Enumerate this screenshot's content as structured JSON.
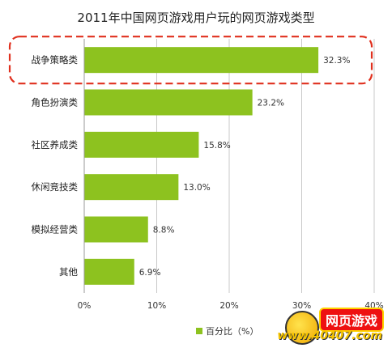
{
  "chart_data": {
    "type": "bar",
    "orientation": "horizontal",
    "title": "2011年中国网页游戏用户玩的网页游戏类型",
    "categories": [
      "战争策略类",
      "角色扮演类",
      "社区养成类",
      "休闲竞技类",
      "模拟经营类",
      "其他"
    ],
    "series": [
      {
        "name": "百分比（%）",
        "values": [
          32.3,
          23.2,
          15.8,
          13.0,
          8.8,
          6.9
        ],
        "value_labels": [
          "32.3%",
          "23.2%",
          "15.8%",
          "13.0%",
          "8.8%",
          "6.9%"
        ],
        "color": "#8dc21f"
      }
    ],
    "xlim": [
      0,
      40
    ],
    "xticks": [
      0,
      10,
      20,
      30,
      40
    ],
    "xtick_labels": [
      "0%",
      "10%",
      "20%",
      "30%",
      "40%"
    ],
    "grid": true,
    "legend": "bottom",
    "highlight": {
      "category": "战争策略类",
      "style": "red dashed rounded box",
      "color": "#e0301e"
    }
  },
  "watermark": {
    "logo_text": "网页游戏",
    "url_text": "www.40407.com"
  }
}
